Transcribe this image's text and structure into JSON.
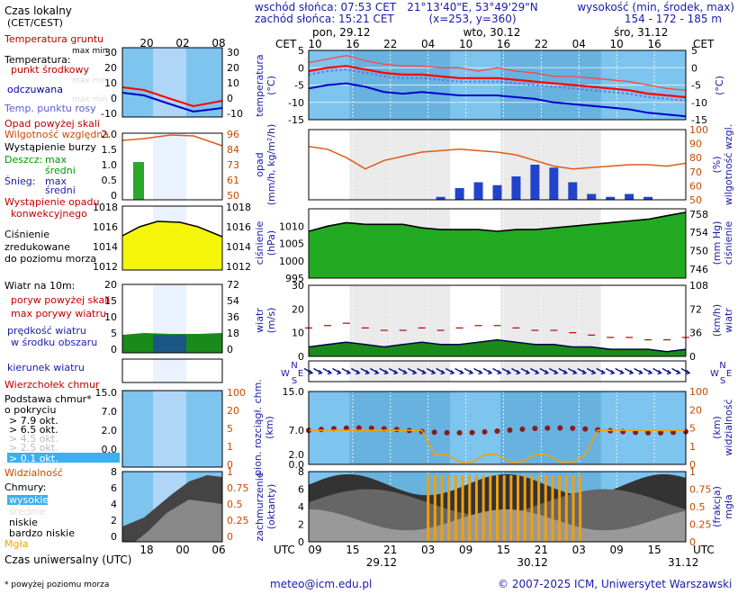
{
  "header": {
    "sunrise": "wschód słońca: 07:53 CET",
    "sunset": "zachód słońca: 15:21 CET",
    "coords": "21°13'40\"E, 53°49'29\"N",
    "grid": "(x=253, y=360)",
    "altitude_title": "wysokość (min, środek, max)",
    "altitude_values": "154 - 172 - 185 m",
    "dates": [
      {
        "day": "pon, 29.12",
        "hour": 0
      },
      {
        "day": "wto, 30.12",
        "hour": 24
      },
      {
        "day": "śro, 31.12",
        "hour": 48
      }
    ]
  },
  "legend": {
    "time_local": "Czas lokalny",
    "time_local_sub": "(CET/CEST)",
    "time_utc": "Czas uniwersalny (UTC)",
    "footnote": "* powyżej poziomu morza",
    "temp": {
      "ground": "Temperatura gruntu",
      "max_min": "max min",
      "temperature": "Temperatura:",
      "mid": "punkt środkowy",
      "max_min2": "max min",
      "chill": "odczuwana",
      "max_min3": "max min",
      "dew": "Temp. punktu rosy"
    },
    "precip": {
      "above_scale": "Opad powyżej skali",
      "humidity": "Wilgotność względna",
      "storm": "Wystąpienie burzy",
      "rain": "Deszcz:",
      "rain_max": "max",
      "rain_mid": "średni",
      "snow": "Śnieg:",
      "snow_max": "max",
      "snow_mid": "średni",
      "convective": "Wystąpienie opadu",
      "convective2": "konwekcyjnego"
    },
    "pressure": {
      "line1": "Ciśnienie",
      "line2": "zredukowane",
      "line3": "do poziomu morza"
    },
    "wind": {
      "title": "Wiatr na 10m:",
      "gust_above": "poryw powyżej skali",
      "gust_max": "max porywy wiatru",
      "speed": "prędkość wiatru",
      "speed2": "w środku obszaru",
      "direction": "kierunek wiatru"
    },
    "cloud": {
      "top": "Wierzchołek chmur",
      "base": "Podstawa chmur*",
      "base2": "o pokryciu",
      "okt": [
        "> 7.9 okt.",
        "> 6.5 okt.",
        "> 4.5 okt.",
        "> 2.5 okt.",
        "> 0.1 okt."
      ],
      "visibility": "Widzialność",
      "clouds": "Chmury:",
      "high": "wysokie",
      "mid": "średnie",
      "low": "niskie",
      "very_low": "bardzo niskie",
      "fog": "Mgła"
    }
  },
  "panels": {
    "temperature": {
      "ylabel": "temperatura",
      "unit": "(°C)",
      "ticks": [
        5,
        0,
        -5,
        -10,
        -15
      ]
    },
    "precip": {
      "ylabel": "opad",
      "unit": "(mm/h, kg/m²/h)",
      "ylabel_r": "wilgotność wzgl.",
      "unit_r": "(%)",
      "ticks_r": [
        100,
        90,
        80,
        70,
        60,
        50
      ]
    },
    "pressure": {
      "ylabel": "ciśnienie",
      "unit": "(hPa)",
      "ylabel_r": "(mm Hg)",
      "unit_r": "ciśnienie",
      "ticks": [
        1010,
        1005,
        1000,
        995
      ],
      "ticks_r": [
        758,
        754,
        750,
        746
      ]
    },
    "wind": {
      "ylabel": "wiatr",
      "unit": "(m/s)",
      "ylabel_r": "wiatr",
      "unit_r": "(km/h)",
      "ticks": [
        30,
        20,
        10,
        0
      ],
      "ticks_r": [
        108,
        72,
        36,
        0
      ]
    },
    "cloudbase": {
      "ylabel": "pion. rozciągł. chm.",
      "unit": "(km)",
      "ylabel_r": "widzialność",
      "unit_r": "(km)",
      "ticks": [
        15.0,
        7.0,
        2.0,
        0.0
      ],
      "ticks_r": [
        100,
        20,
        5,
        1,
        0
      ]
    },
    "cover": {
      "ylabel": "zachmurzenie",
      "unit": "(oktanty)",
      "ylabel_r": "mgła",
      "unit_r": "(frakcja)",
      "ticks": [
        8,
        6,
        4,
        2,
        0
      ],
      "ticks_r": [
        1,
        0.75,
        0.5,
        0.25,
        0
      ]
    }
  },
  "axis": {
    "cet_label": "CET",
    "utc_label": "UTC",
    "cet_hours": [
      "10",
      "16",
      "22",
      "04",
      "10",
      "16",
      "22",
      "04",
      "10",
      "16"
    ],
    "utc_hours": [
      "09",
      "15",
      "21",
      "03",
      "09",
      "15",
      "21",
      "03",
      "09",
      "15"
    ],
    "utc_dates": [
      "29.12",
      "30.12",
      "31.12"
    ],
    "legend_top_hours": [
      "20",
      "02",
      "08"
    ],
    "legend_bottom_hours": [
      "18",
      "00",
      "06"
    ]
  },
  "wind_compass": [
    "N",
    "W",
    "S",
    "E"
  ],
  "footer": {
    "email": "meteo@icm.edu.pl",
    "copyright": "© 2007-2025 ICM, Uniwersytet Warszawski"
  },
  "chart_data": {
    "type": "line",
    "x_hours_utc_from_0900_29_12": [
      0,
      3,
      6,
      9,
      12,
      15,
      18,
      21,
      24,
      27,
      30,
      33,
      36,
      39,
      42,
      45,
      48,
      51,
      54,
      57,
      60
    ],
    "series": [
      {
        "name": "temperatura max",
        "values": [
          1.5,
          2.5,
          3.5,
          2.0,
          1.0,
          0.5,
          0.5,
          0.0,
          0.0,
          -1.0,
          0.0,
          -1.0,
          -1.5,
          -2.5,
          -2.5,
          -3.0,
          -3.5,
          -4.0,
          -5.0,
          -6.0,
          -6.5
        ]
      },
      {
        "name": "temperatura środek",
        "values": [
          -1.0,
          0.0,
          0.5,
          -0.5,
          -1.5,
          -2.0,
          -2.0,
          -2.5,
          -3.0,
          -3.0,
          -3.0,
          -3.5,
          -4.0,
          -4.5,
          -5.0,
          -5.5,
          -6.0,
          -6.5,
          -7.5,
          -8.0,
          -8.5
        ]
      },
      {
        "name": "odczuwana",
        "values": [
          -6.0,
          -5.0,
          -4.5,
          -5.5,
          -7.0,
          -7.5,
          -7.0,
          -7.5,
          -8.0,
          -8.0,
          -8.0,
          -8.5,
          -9.0,
          -10.0,
          -10.5,
          -11.0,
          -11.5,
          -12.0,
          -13.0,
          -13.5,
          -14.0
        ]
      },
      {
        "name": "punkt rosy",
        "values": [
          -2.0,
          -1.0,
          -0.5,
          -1.5,
          -2.5,
          -3.0,
          -3.0,
          -3.5,
          -4.0,
          -4.0,
          -4.0,
          -4.5,
          -5.0,
          -5.5,
          -6.0,
          -6.5,
          -7.0,
          -7.5,
          -8.5,
          -9.0,
          -9.5
        ]
      },
      {
        "name": "wilgotność względna",
        "values": [
          88,
          86,
          80,
          72,
          78,
          81,
          84,
          85,
          86,
          85,
          84,
          82,
          78,
          74,
          72,
          73,
          74,
          75,
          75,
          74,
          76
        ]
      },
      {
        "name": "ciśnienie",
        "values": [
          1008.5,
          1010.0,
          1011.0,
          1010.5,
          1010.5,
          1010.5,
          1009.5,
          1009.0,
          1009.0,
          1009.0,
          1008.5,
          1009.0,
          1009.0,
          1009.5,
          1010.0,
          1010.5,
          1011.0,
          1011.5,
          1012.0,
          1013.0,
          1014.0
        ]
      },
      {
        "name": "prędkość wiatru",
        "values": [
          4,
          5,
          6,
          5,
          4,
          5,
          6,
          5,
          5,
          6,
          7,
          6,
          5,
          5,
          4,
          4,
          3,
          3,
          3,
          2,
          3
        ]
      },
      {
        "name": "max porywy",
        "values": [
          12,
          13,
          14,
          12,
          11,
          11,
          12,
          11,
          12,
          13,
          13,
          12,
          11,
          11,
          10,
          9,
          8,
          8,
          7,
          7,
          8
        ]
      }
    ],
    "precip_bars_mm": [
      0,
      0,
      0,
      0,
      0,
      0,
      0,
      0.05,
      0.2,
      0.3,
      0.25,
      0.4,
      0.6,
      0.55,
      0.3,
      0.1,
      0.05,
      0.1,
      0.05,
      0,
      0
    ],
    "temp_ylim": [
      -15,
      5
    ],
    "humidity_ylim": [
      50,
      100
    ],
    "pressure_ylim": [
      995,
      1015
    ],
    "wind_ylim": [
      0,
      30
    ]
  }
}
